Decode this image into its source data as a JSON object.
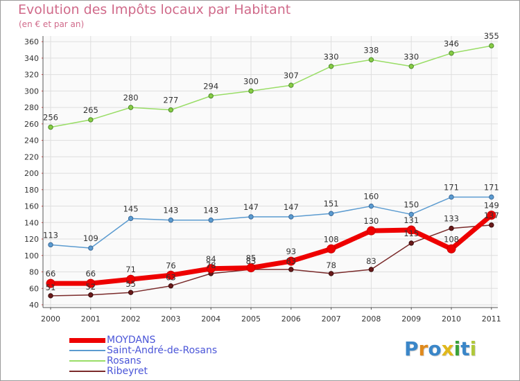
{
  "title": "Evolution des Impôts locaux par Habitant",
  "subtitle": "(en € et par an)",
  "logo": {
    "letters": [
      "P",
      "r",
      "o",
      "x",
      "i",
      "t",
      "i"
    ],
    "colors": [
      "#3a86c8",
      "#e08a1c",
      "#3a86c8",
      "#e0b81c",
      "#3aa23a",
      "#3a86c8",
      "#b0c83a"
    ]
  },
  "chart_data": {
    "type": "line",
    "title": "Evolution des Impôts locaux par Habitant",
    "subtitle": "(en € et par an)",
    "x": [
      "2000",
      "2001",
      "2002",
      "2003",
      "2004",
      "2005",
      "2006",
      "2007",
      "2008",
      "2009",
      "2010",
      "2011"
    ],
    "ylim": [
      40,
      360
    ],
    "yticks": [
      40,
      60,
      80,
      100,
      120,
      140,
      160,
      180,
      200,
      220,
      240,
      260,
      280,
      300,
      320,
      340,
      360
    ],
    "grid": true,
    "legend_position": "bottom-left",
    "series": [
      {
        "name": "MOYDANS",
        "color": "#ee0000",
        "values": [
          66,
          66,
          71,
          76,
          84,
          85,
          93,
          108,
          130,
          131,
          108,
          149
        ]
      },
      {
        "name": "Saint-André-de-Rosans",
        "color": "#5b9bd0",
        "values": [
          113,
          109,
          145,
          143,
          143,
          147,
          147,
          151,
          160,
          150,
          171,
          171
        ]
      },
      {
        "name": "Rosans",
        "color": "#99dd66",
        "values": [
          256,
          265,
          280,
          277,
          294,
          300,
          307,
          330,
          338,
          330,
          346,
          355
        ]
      },
      {
        "name": "Ribeyret",
        "color": "#7a2a2a",
        "values": [
          51,
          52,
          55,
          63,
          78,
          83,
          83,
          78,
          83,
          115,
          133,
          137
        ]
      }
    ],
    "data_labels": [
      {
        "series": "MOYDANS",
        "labels": [
          "66",
          "66",
          "71",
          "76",
          "84",
          "85",
          "93",
          "108",
          "130",
          "131",
          "108",
          "149"
        ]
      },
      {
        "series": "Saint-André-de-Rosans",
        "labels": [
          "113",
          "109",
          "145",
          "143",
          "143",
          "147",
          "147",
          "151",
          "160",
          "150",
          "171",
          "171"
        ]
      },
      {
        "series": "Rosans",
        "labels": [
          "256",
          "265",
          "280",
          "277",
          "294",
          "300",
          "307",
          "330",
          "338",
          "330",
          "346",
          "355"
        ]
      },
      {
        "series": "Ribeyret",
        "labels": [
          "51",
          "52",
          "55",
          "63",
          "78",
          "83",
          "83",
          "78",
          "83",
          "115",
          "133",
          "137"
        ]
      }
    ]
  }
}
